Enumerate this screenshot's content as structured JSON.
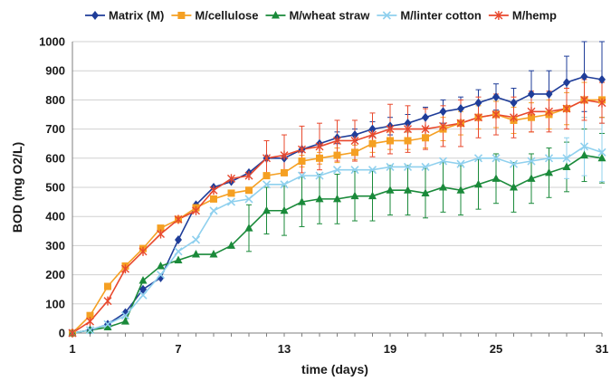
{
  "chart_data": {
    "type": "line",
    "xlabel": "time (days)",
    "ylabel": "BOD (mg O2/L)",
    "x_ticks": [
      1,
      7,
      13,
      19,
      25,
      31
    ],
    "y_ticks": [
      0,
      100,
      200,
      300,
      400,
      500,
      600,
      700,
      800,
      900,
      1000
    ],
    "xlim": [
      1,
      31
    ],
    "ylim": [
      0,
      1000
    ],
    "grid": "horizontal",
    "legend_position": "top",
    "series": [
      {
        "name": "Matrix (M)",
        "color": "#1f3d99",
        "marker": "diamond",
        "x": [
          1,
          2,
          3,
          4,
          5,
          6,
          7,
          8,
          9,
          10,
          11,
          12,
          13,
          14,
          15,
          16,
          17,
          18,
          19,
          20,
          21,
          22,
          23,
          24,
          25,
          26,
          27,
          28,
          29,
          30,
          31
        ],
        "y": [
          0,
          10,
          30,
          70,
          150,
          190,
          320,
          440,
          500,
          520,
          550,
          600,
          600,
          630,
          650,
          670,
          680,
          700,
          710,
          720,
          740,
          760,
          770,
          790,
          810,
          790,
          820,
          820,
          860,
          880,
          870
        ],
        "err": [
          0,
          0,
          0,
          0,
          0,
          0,
          0,
          0,
          0,
          0,
          0,
          0,
          0,
          0,
          0,
          20,
          20,
          25,
          30,
          30,
          35,
          40,
          40,
          45,
          45,
          50,
          80,
          80,
          90,
          120,
          130
        ]
      },
      {
        "name": "M/cellulose",
        "color": "#f5a023",
        "marker": "square",
        "x": [
          1,
          2,
          3,
          4,
          5,
          6,
          7,
          8,
          9,
          10,
          11,
          12,
          13,
          14,
          15,
          16,
          17,
          18,
          19,
          20,
          21,
          22,
          23,
          24,
          25,
          26,
          27,
          28,
          29,
          30,
          31
        ],
        "y": [
          0,
          60,
          160,
          230,
          290,
          360,
          390,
          430,
          460,
          480,
          490,
          540,
          550,
          590,
          600,
          610,
          620,
          650,
          660,
          660,
          670,
          700,
          720,
          740,
          750,
          730,
          740,
          750,
          770,
          800,
          800
        ],
        "err": [
          0,
          0,
          0,
          0,
          0,
          0,
          0,
          0,
          0,
          0,
          0,
          0,
          0,
          20,
          20,
          25,
          25,
          30,
          30,
          30,
          35,
          40,
          40,
          40,
          45,
          45,
          50,
          50,
          55,
          60,
          60
        ]
      },
      {
        "name": "M/wheat straw",
        "color": "#1a8a3a",
        "marker": "triangle",
        "x": [
          1,
          2,
          3,
          4,
          5,
          6,
          7,
          8,
          9,
          10,
          11,
          12,
          13,
          14,
          15,
          16,
          17,
          18,
          19,
          20,
          21,
          22,
          23,
          24,
          25,
          26,
          27,
          28,
          29,
          30,
          31
        ],
        "y": [
          0,
          10,
          20,
          40,
          180,
          230,
          250,
          270,
          270,
          300,
          360,
          420,
          420,
          450,
          460,
          460,
          470,
          470,
          490,
          490,
          480,
          500,
          490,
          510,
          530,
          500,
          530,
          550,
          570,
          610,
          600
        ],
        "err": [
          0,
          0,
          0,
          0,
          0,
          0,
          0,
          0,
          0,
          0,
          80,
          80,
          85,
          85,
          85,
          85,
          85,
          85,
          85,
          85,
          85,
          85,
          85,
          85,
          85,
          85,
          85,
          85,
          85,
          90,
          85
        ]
      },
      {
        "name": "M/linter cotton",
        "color": "#8fd0ee",
        "marker": "x",
        "x": [
          1,
          2,
          3,
          4,
          5,
          6,
          7,
          8,
          9,
          10,
          11,
          12,
          13,
          14,
          15,
          16,
          17,
          18,
          19,
          20,
          21,
          22,
          23,
          24,
          25,
          26,
          27,
          28,
          29,
          30,
          31
        ],
        "y": [
          0,
          10,
          30,
          60,
          130,
          200,
          280,
          320,
          420,
          450,
          460,
          510,
          510,
          540,
          540,
          560,
          560,
          560,
          570,
          570,
          570,
          590,
          580,
          600,
          600,
          580,
          590,
          600,
          600,
          640,
          620
        ],
        "err": [
          0,
          0,
          0,
          0,
          0,
          0,
          0,
          0,
          0,
          0,
          0,
          0,
          0,
          0,
          0,
          0,
          0,
          0,
          0,
          0,
          0,
          0,
          0,
          0,
          0,
          0,
          0,
          0,
          70,
          100,
          100
        ]
      },
      {
        "name": "M/hemp",
        "color": "#e8482d",
        "marker": "star",
        "x": [
          1,
          2,
          3,
          4,
          5,
          6,
          7,
          8,
          9,
          10,
          11,
          12,
          13,
          14,
          15,
          16,
          17,
          18,
          19,
          20,
          21,
          22,
          23,
          24,
          25,
          26,
          27,
          28,
          29,
          30,
          31
        ],
        "y": [
          0,
          40,
          110,
          220,
          280,
          340,
          390,
          420,
          490,
          530,
          540,
          600,
          610,
          630,
          640,
          660,
          660,
          680,
          700,
          700,
          700,
          710,
          720,
          740,
          750,
          740,
          760,
          760,
          770,
          800,
          790
        ],
        "err": [
          0,
          0,
          0,
          0,
          0,
          0,
          0,
          0,
          0,
          0,
          0,
          60,
          70,
          80,
          80,
          70,
          70,
          75,
          85,
          80,
          70,
          70,
          80,
          70,
          70,
          70,
          70,
          70,
          70,
          70,
          70
        ]
      }
    ]
  }
}
